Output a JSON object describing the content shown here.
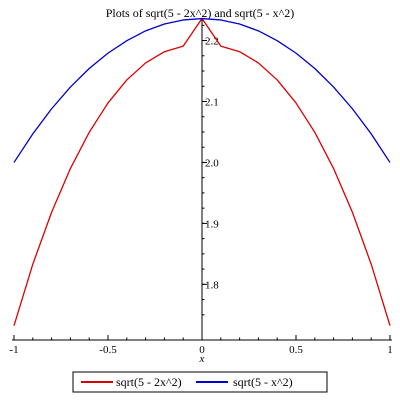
{
  "chart_data": {
    "type": "line",
    "title": "Plots of sqrt(5 - 2x^2) and sqrt(5 - x^2)",
    "xlabel": "x",
    "ylabel": "",
    "xlim": [
      -1,
      1
    ],
    "ylim": [
      1.73,
      2.237
    ],
    "x_ticks": [
      {
        "value": -1,
        "label": "-1"
      },
      {
        "value": -0.5,
        "label": "-0.5"
      },
      {
        "value": 0,
        "label": "0"
      },
      {
        "value": 0.5,
        "label": "0.5"
      },
      {
        "value": 1,
        "label": "1"
      }
    ],
    "y_ticks": [
      {
        "value": 1.8,
        "label": "1.8"
      },
      {
        "value": 1.9,
        "label": "1.9"
      },
      {
        "value": 2.0,
        "label": "2.0"
      },
      {
        "value": 2.1,
        "label": "2.1"
      },
      {
        "value": 2.2,
        "label": "2.2"
      }
    ],
    "grid": false,
    "legend_position": "bottom",
    "series": [
      {
        "name": "sqrt(5 - 2x^2)",
        "color": "#dd0000",
        "x": [
          -1,
          -0.9,
          -0.8,
          -0.7,
          -0.6,
          -0.5,
          -0.4,
          -0.3,
          -0.2,
          -0.1,
          0,
          0.1,
          0.2,
          0.3,
          0.4,
          0.5,
          0.6,
          0.7,
          0.8,
          0.9,
          1
        ],
        "y": [
          1.7321,
          1.833,
          1.9183,
          1.99,
          2.0494,
          2.0976,
          2.1354,
          2.1633,
          2.1817,
          2.1909,
          2.2361,
          2.1909,
          2.1817,
          2.1633,
          2.1354,
          2.0976,
          2.0494,
          1.99,
          1.9183,
          1.833,
          1.7321
        ]
      },
      {
        "name": "sqrt(5 - x^2)",
        "color": "#0000cc",
        "x": [
          -1,
          -0.9,
          -0.8,
          -0.7,
          -0.6,
          -0.5,
          -0.4,
          -0.3,
          -0.2,
          -0.1,
          0,
          0.1,
          0.2,
          0.3,
          0.4,
          0.5,
          0.6,
          0.7,
          0.8,
          0.9,
          1
        ],
        "y": [
          2.0,
          2.0469,
          2.0881,
          2.1237,
          2.1541,
          2.1794,
          2.1998,
          2.2159,
          2.2271,
          2.2338,
          2.2361,
          2.2338,
          2.2271,
          2.2159,
          2.1998,
          2.1794,
          2.1541,
          2.1237,
          2.0881,
          2.0469,
          2.0
        ]
      }
    ]
  }
}
